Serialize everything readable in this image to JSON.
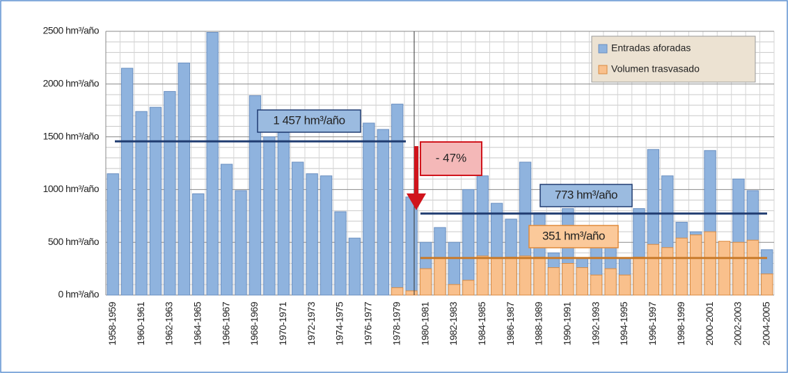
{
  "chart_data": {
    "type": "bar",
    "categories": [
      "1958-1959",
      null,
      "1960-1961",
      null,
      "1962-1963",
      null,
      "1964-1965",
      null,
      "1966-1967",
      null,
      "1968-1969",
      null,
      "1970-1971",
      null,
      "1972-1973",
      null,
      "1974-1975",
      null,
      "1976-1977",
      null,
      "1978-1979",
      null,
      "1980-1981",
      null,
      "1982-1983",
      null,
      "1984-1985",
      null,
      "1986-1987",
      null,
      "1988-1989",
      null,
      "1990-1991",
      null,
      "1992-1993",
      null,
      "1994-1995",
      null,
      "1996-1997",
      null,
      "1998-1999",
      null,
      "2000-2001",
      null,
      "2002-2003",
      null,
      "2004-2005"
    ],
    "series": [
      {
        "name": "Entradas aforadas",
        "color": "#8fb3de",
        "values": [
          1150,
          2150,
          1740,
          1780,
          1930,
          2200,
          960,
          2490,
          1240,
          990,
          1890,
          1500,
          1540,
          1260,
          1150,
          1130,
          790,
          540,
          1630,
          1570,
          1810,
          930,
          500,
          640,
          500,
          1000,
          1130,
          870,
          720,
          1260,
          780,
          400,
          820,
          350,
          500,
          550,
          350,
          820,
          1380,
          1130,
          690,
          600,
          1370,
          500,
          1100,
          990,
          430
        ]
      },
      {
        "name": "Volumen trasvasado",
        "color": "#f9c08c",
        "values": [
          null,
          null,
          null,
          null,
          null,
          null,
          null,
          null,
          null,
          null,
          null,
          null,
          null,
          null,
          null,
          null,
          null,
          null,
          null,
          null,
          70,
          40,
          250,
          350,
          100,
          140,
          370,
          350,
          360,
          370,
          360,
          260,
          300,
          260,
          190,
          250,
          190,
          360,
          480,
          450,
          540,
          570,
          600,
          510,
          500,
          520,
          200
        ]
      }
    ],
    "ylim": [
      0,
      2500
    ],
    "yticks": [
      {
        "value": 0,
        "label": "0 hm³/año"
      },
      {
        "value": 500,
        "label": "500 hm³/año"
      },
      {
        "value": 1000,
        "label": "1000 hm³/año"
      },
      {
        "value": 1500,
        "label": "1500 hm³/año"
      },
      {
        "value": 2000,
        "label": "2000 hm³/año"
      },
      {
        "value": 2500,
        "label": "2500 hm³/año"
      }
    ],
    "grid": true,
    "legend": "top-right",
    "annotations": [
      {
        "value": 1457,
        "label": "1 457 hm³/año",
        "color": "#1f3b70"
      },
      {
        "value": 773,
        "label": "773 hm³/año",
        "color": "#1f3b70"
      },
      {
        "value": 351,
        "label": "351 hm³/año",
        "color": "#c87a2a"
      }
    ],
    "change_label": "- 47%"
  }
}
